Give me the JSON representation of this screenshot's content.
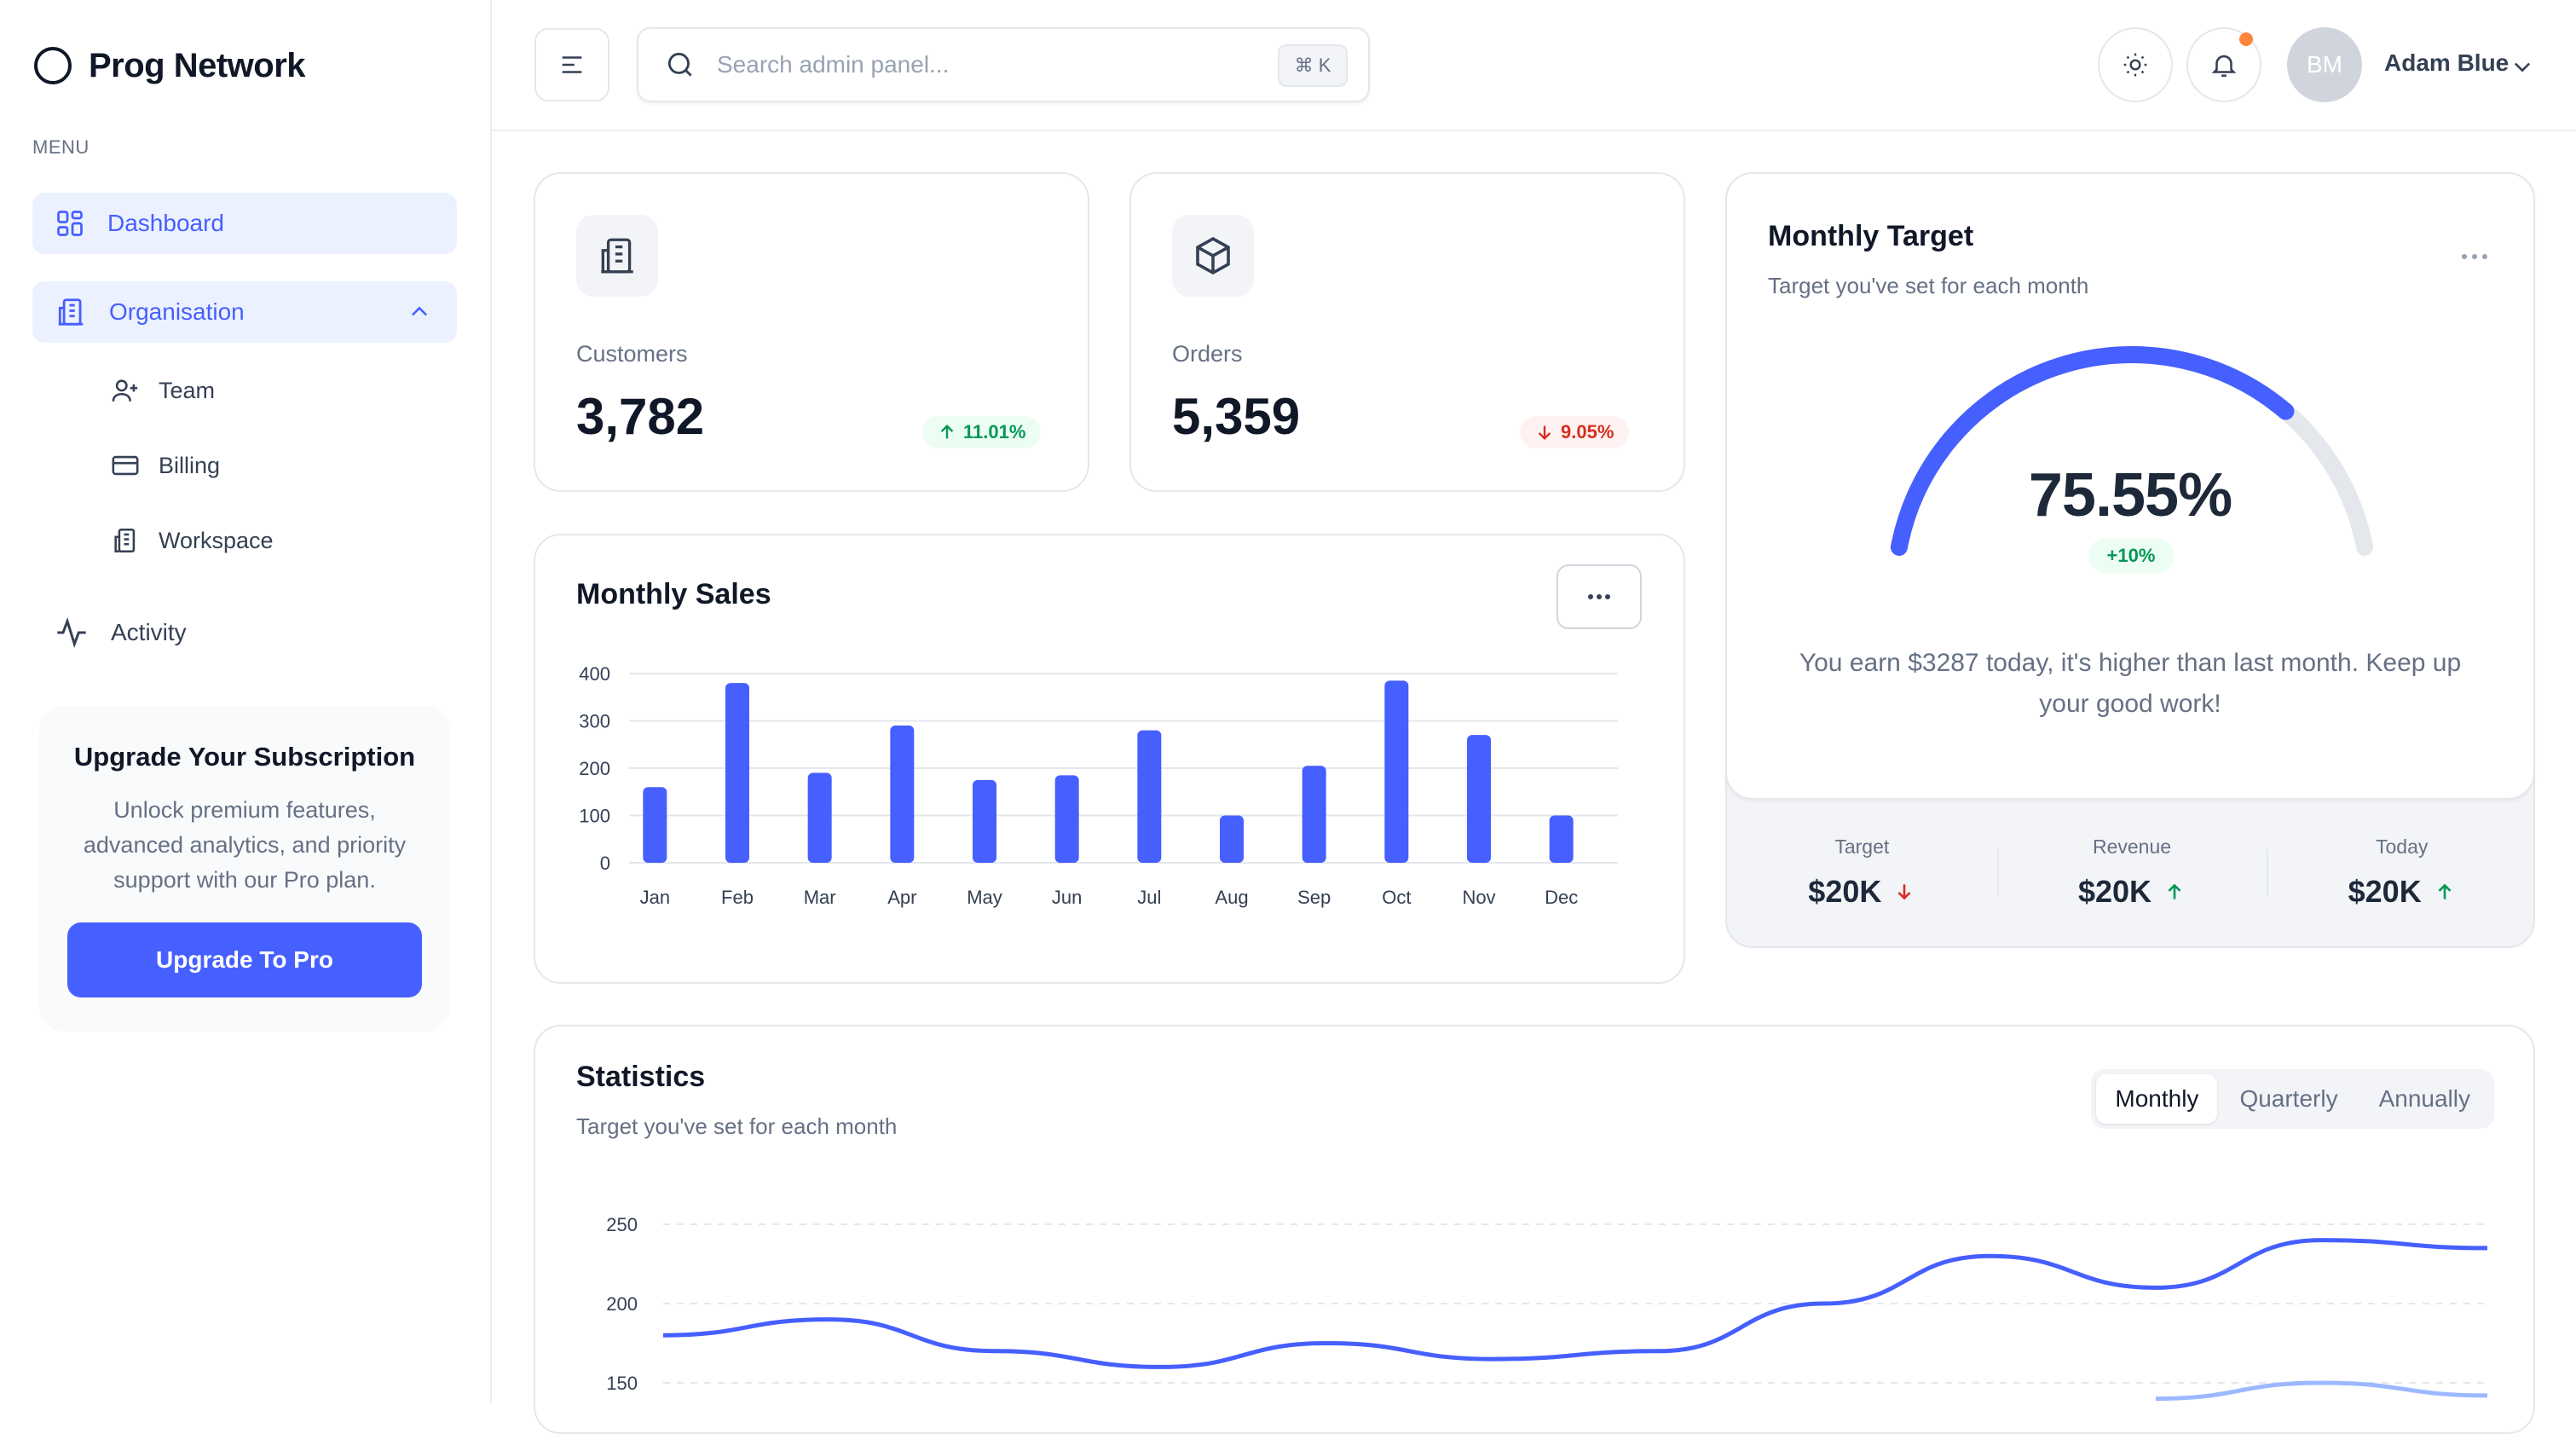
{
  "brand": {
    "name": "Prog Network"
  },
  "sidebar": {
    "menu_label": "MENU",
    "items": [
      {
        "label": "Dashboard"
      },
      {
        "label": "Organisation"
      },
      {
        "label": "Team"
      },
      {
        "label": "Billing"
      },
      {
        "label": "Workspace"
      },
      {
        "label": "Activity"
      }
    ],
    "upgrade": {
      "title": "Upgrade Your Subscription",
      "text": "Unlock premium features, advanced analytics, and priority support with our Pro plan.",
      "button": "Upgrade To Pro"
    }
  },
  "header": {
    "search_placeholder": "Search admin panel...",
    "shortcut": "⌘ K",
    "avatar_initials": "BM",
    "user_name": "Adam Blue",
    "notification_dot_color": "#fd853a"
  },
  "metrics": [
    {
      "label": "Customers",
      "value": "3,782",
      "change": "11.01%",
      "trend": "up"
    },
    {
      "label": "Orders",
      "value": "5,359",
      "change": "9.05%",
      "trend": "down"
    }
  ],
  "monthly_sales": {
    "title": "Monthly Sales",
    "chart_data": {
      "type": "bar",
      "categories": [
        "Jan",
        "Feb",
        "Mar",
        "Apr",
        "May",
        "Jun",
        "Jul",
        "Aug",
        "Sep",
        "Oct",
        "Nov",
        "Dec"
      ],
      "values": [
        160,
        380,
        190,
        290,
        175,
        185,
        280,
        100,
        205,
        385,
        270,
        100
      ],
      "ylim": [
        0,
        400
      ],
      "yticks": [
        0,
        100,
        200,
        300,
        400
      ],
      "color": "#465fff",
      "grid": true
    }
  },
  "monthly_target": {
    "title": "Monthly Target",
    "subtitle": "Target you've set for each month",
    "percent": 75.55,
    "percent_label": "75.55%",
    "change": "+10%",
    "message": "You earn $3287 today, it's higher than last month. Keep up your good work!",
    "stats": [
      {
        "label": "Target",
        "value": "$20K",
        "trend": "down"
      },
      {
        "label": "Revenue",
        "value": "$20K",
        "trend": "up"
      },
      {
        "label": "Today",
        "value": "$20K",
        "trend": "up"
      }
    ]
  },
  "statistics": {
    "title": "Statistics",
    "subtitle": "Target you've set for each month",
    "tabs": [
      {
        "label": "Monthly",
        "active": true
      },
      {
        "label": "Quarterly",
        "active": false
      },
      {
        "label": "Annually",
        "active": false
      }
    ],
    "chart_data": {
      "type": "line",
      "yticks": [
        150,
        200,
        250
      ],
      "ylim": [
        140,
        260
      ],
      "series": [
        {
          "values": [
            180,
            190,
            170,
            160,
            175,
            165,
            170,
            200,
            230,
            210,
            240,
            235
          ],
          "color": "#465fff"
        },
        {
          "values": [
            null,
            null,
            null,
            null,
            null,
            null,
            null,
            null,
            null,
            140,
            150,
            142
          ],
          "color": "#9cb9ff"
        }
      ]
    }
  }
}
